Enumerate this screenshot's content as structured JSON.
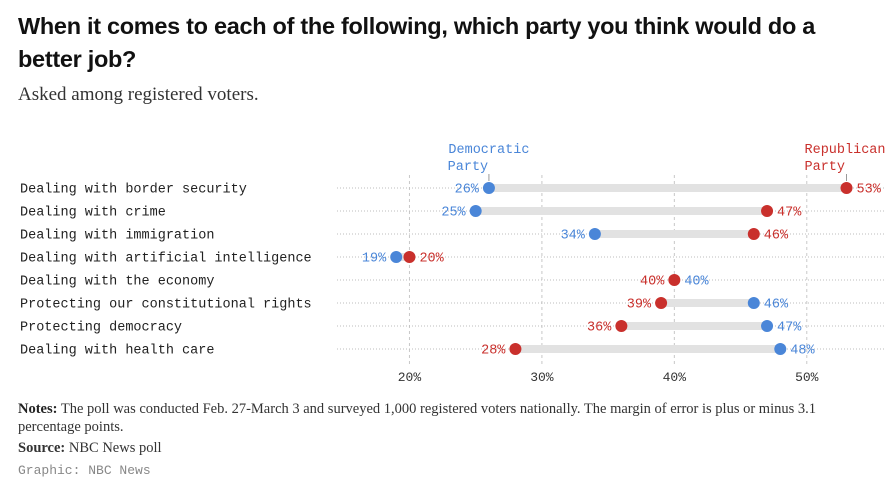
{
  "header": {
    "title": "When it comes to each of the following, which party you think would do a better job?",
    "subtitle": "Asked among registered voters."
  },
  "chart_data": {
    "type": "dot-range",
    "title": "When it comes to each of the following, which party you think would do a better job?",
    "subtitle": "Asked among registered voters.",
    "series": [
      {
        "name": "Democratic Party",
        "label_lines": [
          "Democratic",
          "Party"
        ],
        "color": "#4a86d8",
        "values": [
          26,
          25,
          34,
          19,
          40,
          46,
          47,
          48
        ]
      },
      {
        "name": "Republican Party",
        "label_lines": [
          "Republican",
          "Party"
        ],
        "color": "#c9302c",
        "values": [
          53,
          47,
          46,
          20,
          40,
          39,
          36,
          28
        ]
      }
    ],
    "categories": [
      "Dealing with border security",
      "Dealing with crime",
      "Dealing with immigration",
      "Dealing with artificial intelligence",
      "Dealing with the economy",
      "Protecting our constitutional rights",
      "Protecting democracy",
      "Dealing with health care"
    ],
    "x_ticks": [
      20,
      30,
      40,
      50
    ],
    "x_tick_labels": [
      "20%",
      "30%",
      "40%",
      "50%"
    ],
    "xlim": [
      14,
      55
    ],
    "unit": "%"
  },
  "footer": {
    "notes_label": "Notes:",
    "notes_text": "The poll was conducted Feb. 27-March 3 and surveyed 1,000 registered voters nationally. The margin of error is plus or minus 3.1 percentage points.",
    "source_label": "Source:",
    "source_text": "NBC News poll",
    "graphic_credit": "Graphic: NBC News"
  }
}
